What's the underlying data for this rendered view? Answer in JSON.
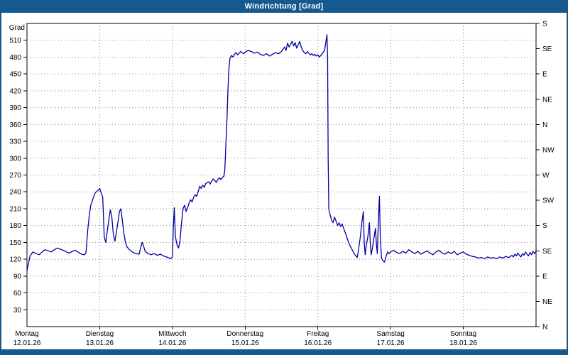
{
  "window": {
    "title": "Windrichtung [Grad]"
  },
  "colors": {
    "frame": "#16598f",
    "title_text": "#ffffff",
    "line": "#0000a0",
    "grid": "#8a8a8a",
    "plot_border": "#000000",
    "plot_background": "#ffffff"
  },
  "chart_data": {
    "type": "line",
    "title": "Windrichtung [Grad]",
    "ylabel": "Grad",
    "ylim": [
      0,
      540
    ],
    "ytick_step": 30,
    "grid": "dotted",
    "right_axis": [
      {
        "deg": 540,
        "label": "S"
      },
      {
        "deg": 495,
        "label": "SE"
      },
      {
        "deg": 450,
        "label": "E"
      },
      {
        "deg": 405,
        "label": "NE"
      },
      {
        "deg": 360,
        "label": "N"
      },
      {
        "deg": 315,
        "label": "NW"
      },
      {
        "deg": 270,
        "label": "W"
      },
      {
        "deg": 225,
        "label": "SW"
      },
      {
        "deg": 180,
        "label": "S"
      },
      {
        "deg": 135,
        "label": "SE"
      },
      {
        "deg": 90,
        "label": "E"
      },
      {
        "deg": 45,
        "label": "NE"
      },
      {
        "deg": 0,
        "label": "N"
      }
    ],
    "x_days": [
      {
        "name": "Montag",
        "date": "12.01.26"
      },
      {
        "name": "Dienstag",
        "date": "13.01.26"
      },
      {
        "name": "Mittwoch",
        "date": "14.01.26"
      },
      {
        "name": "Donnerstag",
        "date": "15.01.26"
      },
      {
        "name": "Freitag",
        "date": "16.01.26"
      },
      {
        "name": "Samstag",
        "date": "17.01.26"
      },
      {
        "name": "Sonntag",
        "date": "18.01.26"
      }
    ],
    "hours_per_day": 24,
    "series": [
      {
        "name": "Windrichtung",
        "color": "#0000a0",
        "points": [
          [
            0,
            100
          ],
          [
            0.5,
            112
          ],
          [
            1,
            126
          ],
          [
            2,
            133
          ],
          [
            3,
            130
          ],
          [
            4,
            128
          ],
          [
            5,
            133
          ],
          [
            6,
            137
          ],
          [
            7,
            135
          ],
          [
            8,
            133
          ],
          [
            9,
            137
          ],
          [
            10,
            140
          ],
          [
            11,
            138
          ],
          [
            12,
            136
          ],
          [
            13,
            133
          ],
          [
            14,
            131
          ],
          [
            15,
            134
          ],
          [
            16,
            136
          ],
          [
            17,
            132
          ],
          [
            18,
            129
          ],
          [
            19,
            128
          ],
          [
            19.5,
            132
          ],
          [
            20,
            170
          ],
          [
            20.5,
            195
          ],
          [
            21,
            215
          ],
          [
            21.8,
            228
          ],
          [
            22.5,
            238
          ],
          [
            23.5,
            243
          ],
          [
            24,
            246
          ],
          [
            24.5,
            238
          ],
          [
            25,
            230
          ],
          [
            25.5,
            160
          ],
          [
            26,
            150
          ],
          [
            26.5,
            170
          ],
          [
            27,
            190
          ],
          [
            27.5,
            208
          ],
          [
            28,
            195
          ],
          [
            28.5,
            165
          ],
          [
            29,
            152
          ],
          [
            29.5,
            168
          ],
          [
            30,
            185
          ],
          [
            30.5,
            205
          ],
          [
            31,
            210
          ],
          [
            31.5,
            188
          ],
          [
            32,
            165
          ],
          [
            32.5,
            150
          ],
          [
            33,
            142
          ],
          [
            34,
            136
          ],
          [
            35,
            132
          ],
          [
            36,
            130
          ],
          [
            37,
            129
          ],
          [
            37.5,
            140
          ],
          [
            38,
            150
          ],
          [
            38.5,
            143
          ],
          [
            39,
            134
          ],
          [
            40,
            130
          ],
          [
            41,
            128
          ],
          [
            42,
            130
          ],
          [
            43,
            127
          ],
          [
            44,
            129
          ],
          [
            45,
            126
          ],
          [
            46,
            124
          ],
          [
            47,
            122
          ],
          [
            47.5,
            121
          ],
          [
            48,
            124
          ],
          [
            48.3,
            175
          ],
          [
            48.6,
            212
          ],
          [
            49,
            160
          ],
          [
            49.5,
            146
          ],
          [
            50,
            140
          ],
          [
            50.5,
            152
          ],
          [
            51,
            185
          ],
          [
            51.5,
            210
          ],
          [
            52,
            216
          ],
          [
            52.5,
            205
          ],
          [
            53,
            212
          ],
          [
            53.5,
            220
          ],
          [
            54,
            226
          ],
          [
            54.5,
            222
          ],
          [
            55,
            230
          ],
          [
            55.5,
            235
          ],
          [
            56,
            232
          ],
          [
            56.5,
            240
          ],
          [
            57,
            250
          ],
          [
            57.5,
            246
          ],
          [
            58,
            252
          ],
          [
            58.5,
            248
          ],
          [
            59,
            255
          ],
          [
            60,
            258
          ],
          [
            60.5,
            254
          ],
          [
            61,
            260
          ],
          [
            61.5,
            263
          ],
          [
            62,
            260
          ],
          [
            62.5,
            257
          ],
          [
            63,
            262
          ],
          [
            63.5,
            265
          ],
          [
            64,
            262
          ],
          [
            64.5,
            266
          ],
          [
            65,
            268
          ],
          [
            65.3,
            280
          ],
          [
            65.6,
            320
          ],
          [
            66,
            370
          ],
          [
            66.3,
            420
          ],
          [
            66.6,
            455
          ],
          [
            67,
            478
          ],
          [
            67.5,
            483
          ],
          [
            68,
            480
          ],
          [
            68.5,
            485
          ],
          [
            69,
            488
          ],
          [
            69.5,
            484
          ],
          [
            70,
            487
          ],
          [
            70.5,
            490
          ],
          [
            71,
            488
          ],
          [
            71.5,
            486
          ],
          [
            72,
            489
          ],
          [
            73,
            492
          ],
          [
            74,
            490
          ],
          [
            75,
            487
          ],
          [
            76,
            489
          ],
          [
            77,
            485
          ],
          [
            78,
            483
          ],
          [
            79,
            486
          ],
          [
            80,
            482
          ],
          [
            81,
            485
          ],
          [
            82,
            488
          ],
          [
            83,
            486
          ],
          [
            84,
            490
          ],
          [
            84.5,
            494
          ],
          [
            85,
            498
          ],
          [
            85.5,
            492
          ],
          [
            86,
            505
          ],
          [
            86.5,
            498
          ],
          [
            87,
            503
          ],
          [
            87.5,
            508
          ],
          [
            88,
            500
          ],
          [
            88.5,
            506
          ],
          [
            89,
            496
          ],
          [
            89.5,
            502
          ],
          [
            90,
            508
          ],
          [
            90.5,
            498
          ],
          [
            91,
            492
          ],
          [
            91.5,
            488
          ],
          [
            92,
            486
          ],
          [
            92.5,
            490
          ],
          [
            93,
            487
          ],
          [
            93.5,
            484
          ],
          [
            94,
            486
          ],
          [
            94.5,
            483
          ],
          [
            95,
            485
          ],
          [
            95.5,
            482
          ],
          [
            96,
            484
          ],
          [
            96.5,
            480
          ],
          [
            97,
            483
          ],
          [
            97.5,
            487
          ],
          [
            98,
            490
          ],
          [
            98.3,
            495
          ],
          [
            98.6,
            505
          ],
          [
            99,
            520
          ],
          [
            99.2,
            480
          ],
          [
            99.4,
            300
          ],
          [
            99.6,
            210
          ],
          [
            100,
            200
          ],
          [
            100.5,
            190
          ],
          [
            101,
            185
          ],
          [
            101.5,
            195
          ],
          [
            102,
            188
          ],
          [
            102.5,
            180
          ],
          [
            103,
            185
          ],
          [
            103.5,
            178
          ],
          [
            104,
            183
          ],
          [
            104.5,
            175
          ],
          [
            105,
            168
          ],
          [
            105.5,
            160
          ],
          [
            106,
            152
          ],
          [
            106.5,
            145
          ],
          [
            107,
            140
          ],
          [
            107.5,
            135
          ],
          [
            108,
            130
          ],
          [
            108.5,
            126
          ],
          [
            109,
            123
          ],
          [
            109.5,
            140
          ],
          [
            110,
            160
          ],
          [
            110.5,
            185
          ],
          [
            111,
            205
          ],
          [
            111.3,
            150
          ],
          [
            111.6,
            128
          ],
          [
            112,
            145
          ],
          [
            112.5,
            160
          ],
          [
            113,
            185
          ],
          [
            113.3,
            150
          ],
          [
            113.6,
            128
          ],
          [
            114,
            140
          ],
          [
            114.5,
            158
          ],
          [
            115,
            175
          ],
          [
            115.3,
            148
          ],
          [
            115.6,
            130
          ],
          [
            116,
            195
          ],
          [
            116.3,
            232
          ],
          [
            116.6,
            160
          ],
          [
            117,
            122
          ],
          [
            117.5,
            117
          ],
          [
            118,
            115
          ],
          [
            118.5,
            125
          ],
          [
            119,
            133
          ],
          [
            119.5,
            130
          ],
          [
            120,
            133
          ],
          [
            121,
            136
          ],
          [
            122,
            132
          ],
          [
            123,
            130
          ],
          [
            124,
            134
          ],
          [
            125,
            131
          ],
          [
            126,
            137
          ],
          [
            127,
            133
          ],
          [
            128,
            130
          ],
          [
            129,
            134
          ],
          [
            130,
            129
          ],
          [
            131,
            132
          ],
          [
            132,
            135
          ],
          [
            133,
            131
          ],
          [
            134,
            128
          ],
          [
            135,
            133
          ],
          [
            136,
            136
          ],
          [
            137,
            131
          ],
          [
            138,
            129
          ],
          [
            139,
            133
          ],
          [
            140,
            130
          ],
          [
            141,
            134
          ],
          [
            142,
            128
          ],
          [
            143,
            131
          ],
          [
            144,
            133
          ],
          [
            145,
            129
          ],
          [
            146,
            127
          ],
          [
            147,
            125
          ],
          [
            148,
            124
          ],
          [
            149,
            122
          ],
          [
            150,
            123
          ],
          [
            151,
            121
          ],
          [
            152,
            124
          ],
          [
            153,
            122
          ],
          [
            154,
            123
          ],
          [
            155,
            121
          ],
          [
            156,
            124
          ],
          [
            157,
            122
          ],
          [
            158,
            125
          ],
          [
            159,
            123
          ],
          [
            160,
            127
          ],
          [
            160.5,
            124
          ],
          [
            161,
            129
          ],
          [
            161.5,
            126
          ],
          [
            162,
            131
          ],
          [
            162.5,
            127
          ],
          [
            163,
            124
          ],
          [
            163.5,
            130
          ],
          [
            164,
            127
          ],
          [
            164.5,
            133
          ],
          [
            165,
            129
          ],
          [
            165.5,
            126
          ],
          [
            166,
            132
          ],
          [
            166.5,
            128
          ],
          [
            167,
            134
          ],
          [
            167.5,
            130
          ],
          [
            168,
            134
          ]
        ]
      }
    ]
  }
}
